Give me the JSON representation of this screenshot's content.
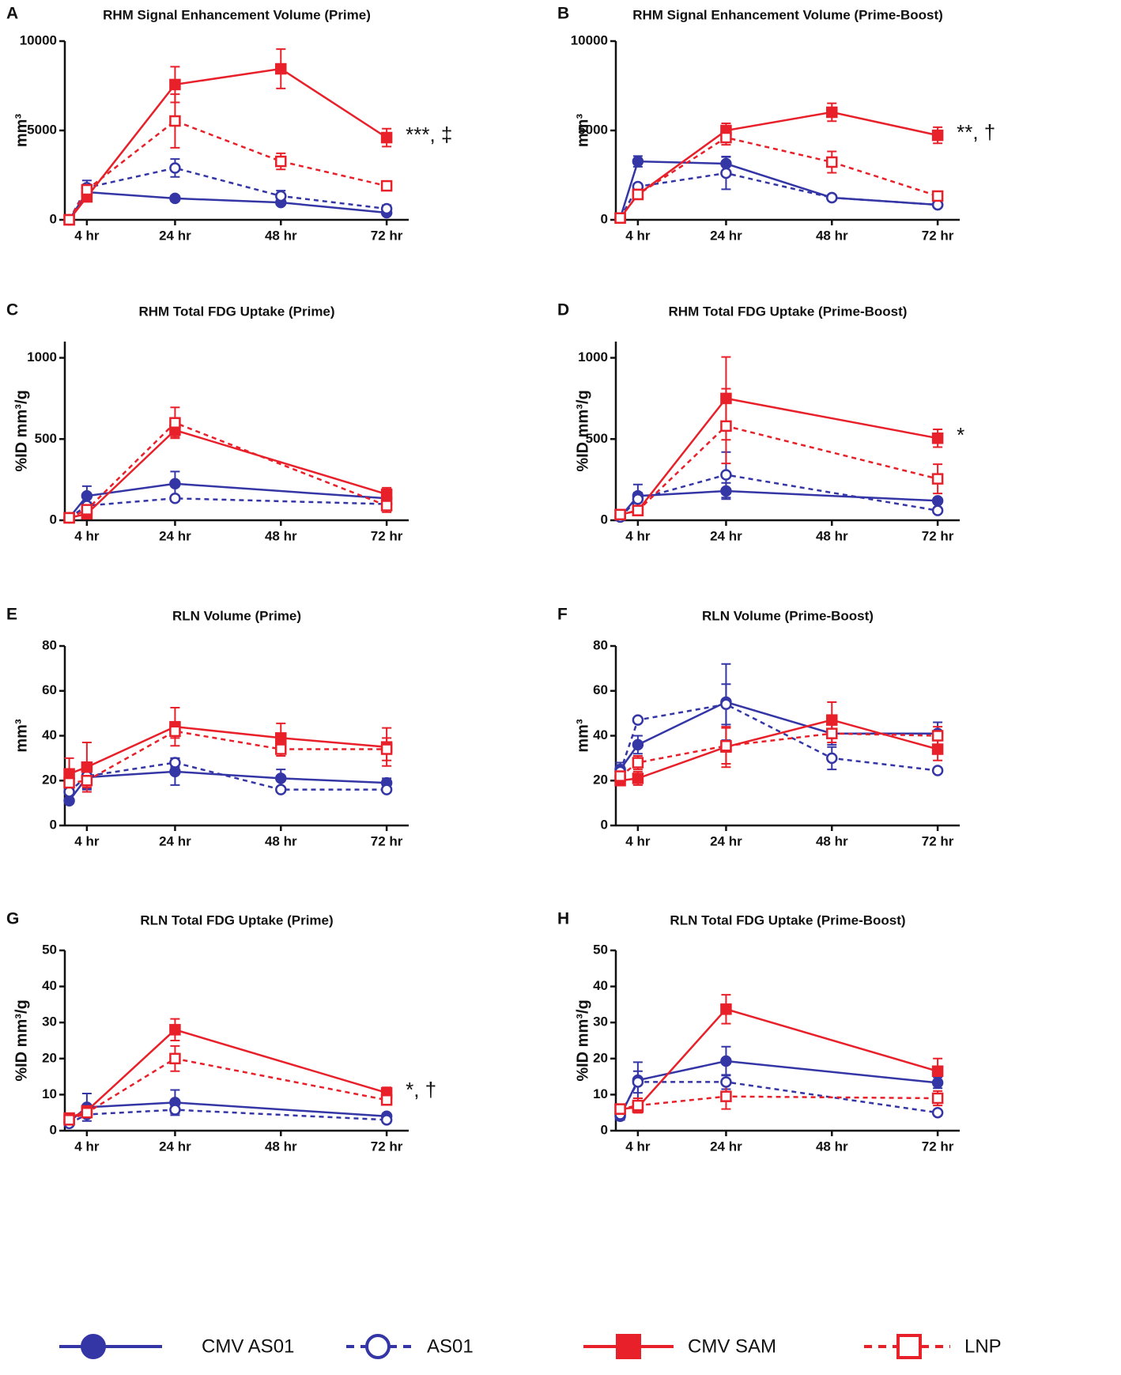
{
  "legend": [
    {
      "name": "CMV AS01",
      "color": "#3536a6",
      "marker": "circle",
      "filled": true,
      "dashed": false
    },
    {
      "name": "AS01",
      "color": "#3536a6",
      "marker": "circle",
      "filled": false,
      "dashed": true
    },
    {
      "name": "CMV SAM",
      "color": "#e8202a",
      "marker": "square",
      "filled": true,
      "dashed": false
    },
    {
      "name": "LNP",
      "color": "#e8202a",
      "marker": "square",
      "filled": false,
      "dashed": true
    }
  ],
  "chart_data": [
    {
      "type": "line",
      "panel": "A",
      "title": "RHM Signal Enhancement Volume (Prime)",
      "ylabel": "mm³",
      "annotation": "***, ‡",
      "x": [
        0,
        4,
        24,
        48,
        72
      ],
      "xlim": [
        -1,
        77
      ],
      "xticks": [
        {
          "value": 4,
          "label": "4 hr"
        },
        {
          "value": 24,
          "label": "24 hr"
        },
        {
          "value": 48,
          "label": "48 hr"
        },
        {
          "value": 72,
          "label": "72 hr"
        }
      ],
      "ylim": [
        0,
        10000
      ],
      "yticks": [
        0,
        5000,
        10000
      ],
      "series": [
        {
          "values": [
            0,
            1550,
            1200,
            970,
            400
          ],
          "errors": [
            0,
            150,
            150,
            100,
            80
          ]
        },
        {
          "values": [
            0,
            1800,
            2900,
            1330,
            620
          ],
          "errors": [
            0,
            400,
            500,
            300,
            200
          ]
        },
        {
          "values": [
            0,
            1280,
            7570,
            8450,
            4600
          ],
          "errors": [
            0,
            200,
            1000,
            1100,
            500
          ]
        },
        {
          "values": [
            0,
            1680,
            5530,
            3270,
            1900
          ],
          "errors": [
            0,
            300,
            1500,
            450,
            150
          ]
        }
      ]
    },
    {
      "type": "line",
      "panel": "B",
      "title": "RHM Signal Enhancement Volume (Prime-Boost)",
      "ylabel": "mm³",
      "annotation": "**, †",
      "x": [
        0,
        4,
        24,
        48,
        72
      ],
      "xlim": [
        -1,
        77
      ],
      "xticks": [
        {
          "value": 4,
          "label": "4 hr"
        },
        {
          "value": 24,
          "label": "24 hr"
        },
        {
          "value": 48,
          "label": "48 hr"
        },
        {
          "value": 72,
          "label": "72 hr"
        }
      ],
      "ylim": [
        0,
        10000
      ],
      "yticks": [
        0,
        5000,
        10000
      ],
      "series": [
        {
          "values": [
            100,
            3270,
            3140,
            1240,
            840
          ],
          "errors": [
            0,
            300,
            400,
            100,
            80
          ]
        },
        {
          "values": [
            100,
            1860,
            2610,
            1240,
            840
          ],
          "errors": [
            0,
            150,
            900,
            100,
            80
          ]
        },
        {
          "values": [
            100,
            1420,
            5000,
            6020,
            4730
          ],
          "errors": [
            0,
            200,
            400,
            500,
            450
          ]
        },
        {
          "values": [
            100,
            1420,
            4600,
            3230,
            1330
          ],
          "errors": [
            0,
            200,
            400,
            600,
            150
          ]
        }
      ]
    },
    {
      "type": "line",
      "panel": "C",
      "title": "RHM Total FDG Uptake (Prime)",
      "ylabel": "%ID mm³/g",
      "x": [
        0,
        4,
        24,
        72
      ],
      "xlim": [
        -1,
        77
      ],
      "xticks": [
        {
          "value": 4,
          "label": "4 hr"
        },
        {
          "value": 24,
          "label": "24 hr"
        },
        {
          "value": 48,
          "label": "48 hr"
        },
        {
          "value": 72,
          "label": "72 hr"
        }
      ],
      "ylim": [
        0,
        1100
      ],
      "yticks": [
        0,
        500,
        1000
      ],
      "series": [
        {
          "values": [
            15,
            150,
            225,
            135
          ],
          "errors": [
            5,
            60,
            75,
            30
          ]
        },
        {
          "values": [
            15,
            90,
            135,
            100
          ],
          "errors": [
            5,
            20,
            15,
            20
          ]
        },
        {
          "values": [
            15,
            40,
            555,
            160
          ],
          "errors": [
            5,
            15,
            40,
            40
          ]
        },
        {
          "values": [
            15,
            65,
            600,
            90
          ],
          "errors": [
            5,
            20,
            95,
            40
          ]
        }
      ]
    },
    {
      "type": "line",
      "panel": "D",
      "title": "RHM Total FDG Uptake (Prime-Boost)",
      "ylabel": "%ID mm³/g",
      "annotation": "*",
      "x": [
        0,
        4,
        24,
        72
      ],
      "xlim": [
        -1,
        77
      ],
      "xticks": [
        {
          "value": 4,
          "label": "4 hr"
        },
        {
          "value": 24,
          "label": "24 hr"
        },
        {
          "value": 48,
          "label": "48 hr"
        },
        {
          "value": 72,
          "label": "72 hr"
        }
      ],
      "ylim": [
        0,
        1100
      ],
      "yticks": [
        0,
        500,
        1000
      ],
      "series": [
        {
          "values": [
            20,
            150,
            180,
            120
          ],
          "errors": [
            5,
            70,
            50,
            15
          ]
        },
        {
          "values": [
            20,
            130,
            280,
            60
          ],
          "errors": [
            5,
            40,
            140,
            10
          ]
        },
        {
          "values": [
            35,
            60,
            750,
            505
          ],
          "errors": [
            5,
            10,
            255,
            55
          ]
        },
        {
          "values": [
            35,
            60,
            580,
            255
          ],
          "errors": [
            5,
            10,
            230,
            90
          ]
        }
      ]
    },
    {
      "type": "line",
      "panel": "E",
      "title": "RLN Volume (Prime)",
      "ylabel": "mm³",
      "x": [
        0,
        4,
        24,
        48,
        72
      ],
      "xlim": [
        -1,
        77
      ],
      "xticks": [
        {
          "value": 4,
          "label": "4 hr"
        },
        {
          "value": 24,
          "label": "24 hr"
        },
        {
          "value": 48,
          "label": "48 hr"
        },
        {
          "value": 72,
          "label": "72 hr"
        }
      ],
      "ylim": [
        0,
        80
      ],
      "yticks": [
        0,
        20,
        40,
        60,
        80
      ],
      "series": [
        {
          "values": [
            11,
            21.5,
            24,
            21,
            19
          ],
          "errors": [
            1,
            5,
            6,
            4,
            2
          ]
        },
        {
          "values": [
            15,
            22,
            28,
            16,
            16
          ],
          "errors": [
            1,
            6,
            2,
            1,
            1
          ]
        },
        {
          "values": [
            23,
            26,
            44,
            39,
            35
          ],
          "errors": [
            7,
            11,
            8.5,
            6.5,
            8.5
          ]
        },
        {
          "values": [
            19,
            20,
            42,
            34,
            34
          ],
          "errors": [
            3,
            3,
            3,
            3,
            5
          ]
        }
      ]
    },
    {
      "type": "line",
      "panel": "F",
      "title": "RLN Volume (Prime-Boost)",
      "ylabel": "mm³",
      "x": [
        0,
        4,
        24,
        48,
        72
      ],
      "xlim": [
        -1,
        77
      ],
      "xticks": [
        {
          "value": 4,
          "label": "4 hr"
        },
        {
          "value": 24,
          "label": "24 hr"
        },
        {
          "value": 48,
          "label": "48 hr"
        },
        {
          "value": 72,
          "label": "72 hr"
        }
      ],
      "ylim": [
        0,
        80
      ],
      "yticks": [
        0,
        20,
        40,
        60,
        80
      ],
      "series": [
        {
          "values": [
            25,
            36,
            55,
            41,
            41
          ],
          "errors": [
            3,
            4,
            17,
            5,
            5
          ]
        },
        {
          "values": [
            24,
            47,
            54,
            30,
            24.5
          ],
          "errors": [
            3,
            1,
            9,
            5,
            1
          ]
        },
        {
          "values": [
            20,
            21,
            35,
            47,
            34
          ],
          "errors": [
            2,
            3,
            9,
            8,
            5
          ]
        },
        {
          "values": [
            22,
            28,
            35.5,
            41,
            40
          ],
          "errors": [
            3,
            3,
            8,
            4,
            4
          ]
        }
      ]
    },
    {
      "type": "line",
      "panel": "G",
      "title": "RLN Total FDG Uptake (Prime)",
      "ylabel": "%ID mm³/g",
      "annotation": "*, †",
      "x": [
        0,
        4,
        24,
        72
      ],
      "xlim": [
        -1,
        77
      ],
      "xticks": [
        {
          "value": 4,
          "label": "4 hr"
        },
        {
          "value": 24,
          "label": "24 hr"
        },
        {
          "value": 48,
          "label": "48 hr"
        },
        {
          "value": 72,
          "label": "72 hr"
        }
      ],
      "ylim": [
        0,
        50
      ],
      "yticks": [
        0,
        10,
        20,
        30,
        40,
        50
      ],
      "series": [
        {
          "values": [
            2.5,
            6.5,
            7.8,
            4
          ],
          "errors": [
            0.5,
            3.8,
            3.5,
            0.7
          ]
        },
        {
          "values": [
            2,
            4.5,
            5.8,
            3
          ],
          "errors": [
            0.3,
            0.8,
            1,
            0.5
          ]
        },
        {
          "values": [
            3.5,
            5.5,
            28,
            10.5
          ],
          "errors": [
            0.5,
            1,
            3,
            1.5
          ]
        },
        {
          "values": [
            3,
            5,
            20,
            8.5
          ],
          "errors": [
            0.5,
            1,
            3.5,
            1
          ]
        }
      ]
    },
    {
      "type": "line",
      "panel": "H",
      "title": "RLN Total FDG Uptake (Prime-Boost)",
      "ylabel": "%ID mm³/g",
      "x": [
        0,
        4,
        24,
        72
      ],
      "xlim": [
        -1,
        77
      ],
      "xticks": [
        {
          "value": 4,
          "label": "4 hr"
        },
        {
          "value": 24,
          "label": "24 hr"
        },
        {
          "value": 48,
          "label": "48 hr"
        },
        {
          "value": 72,
          "label": "72 hr"
        }
      ],
      "ylim": [
        0,
        50
      ],
      "yticks": [
        0,
        10,
        20,
        30,
        40,
        50
      ],
      "series": [
        {
          "values": [
            4,
            14,
            19.3,
            13.3
          ],
          "errors": [
            1,
            5,
            4,
            1.5
          ]
        },
        {
          "values": [
            4.5,
            13.5,
            13.5,
            5
          ],
          "errors": [
            0.5,
            3,
            2,
            0.5
          ]
        },
        {
          "values": [
            6,
            6.5,
            33.7,
            16.5
          ],
          "errors": [
            1,
            1.5,
            4,
            3.5
          ]
        },
        {
          "values": [
            6,
            7,
            9.5,
            9
          ],
          "errors": [
            1,
            2,
            3.5,
            2
          ]
        }
      ]
    }
  ]
}
